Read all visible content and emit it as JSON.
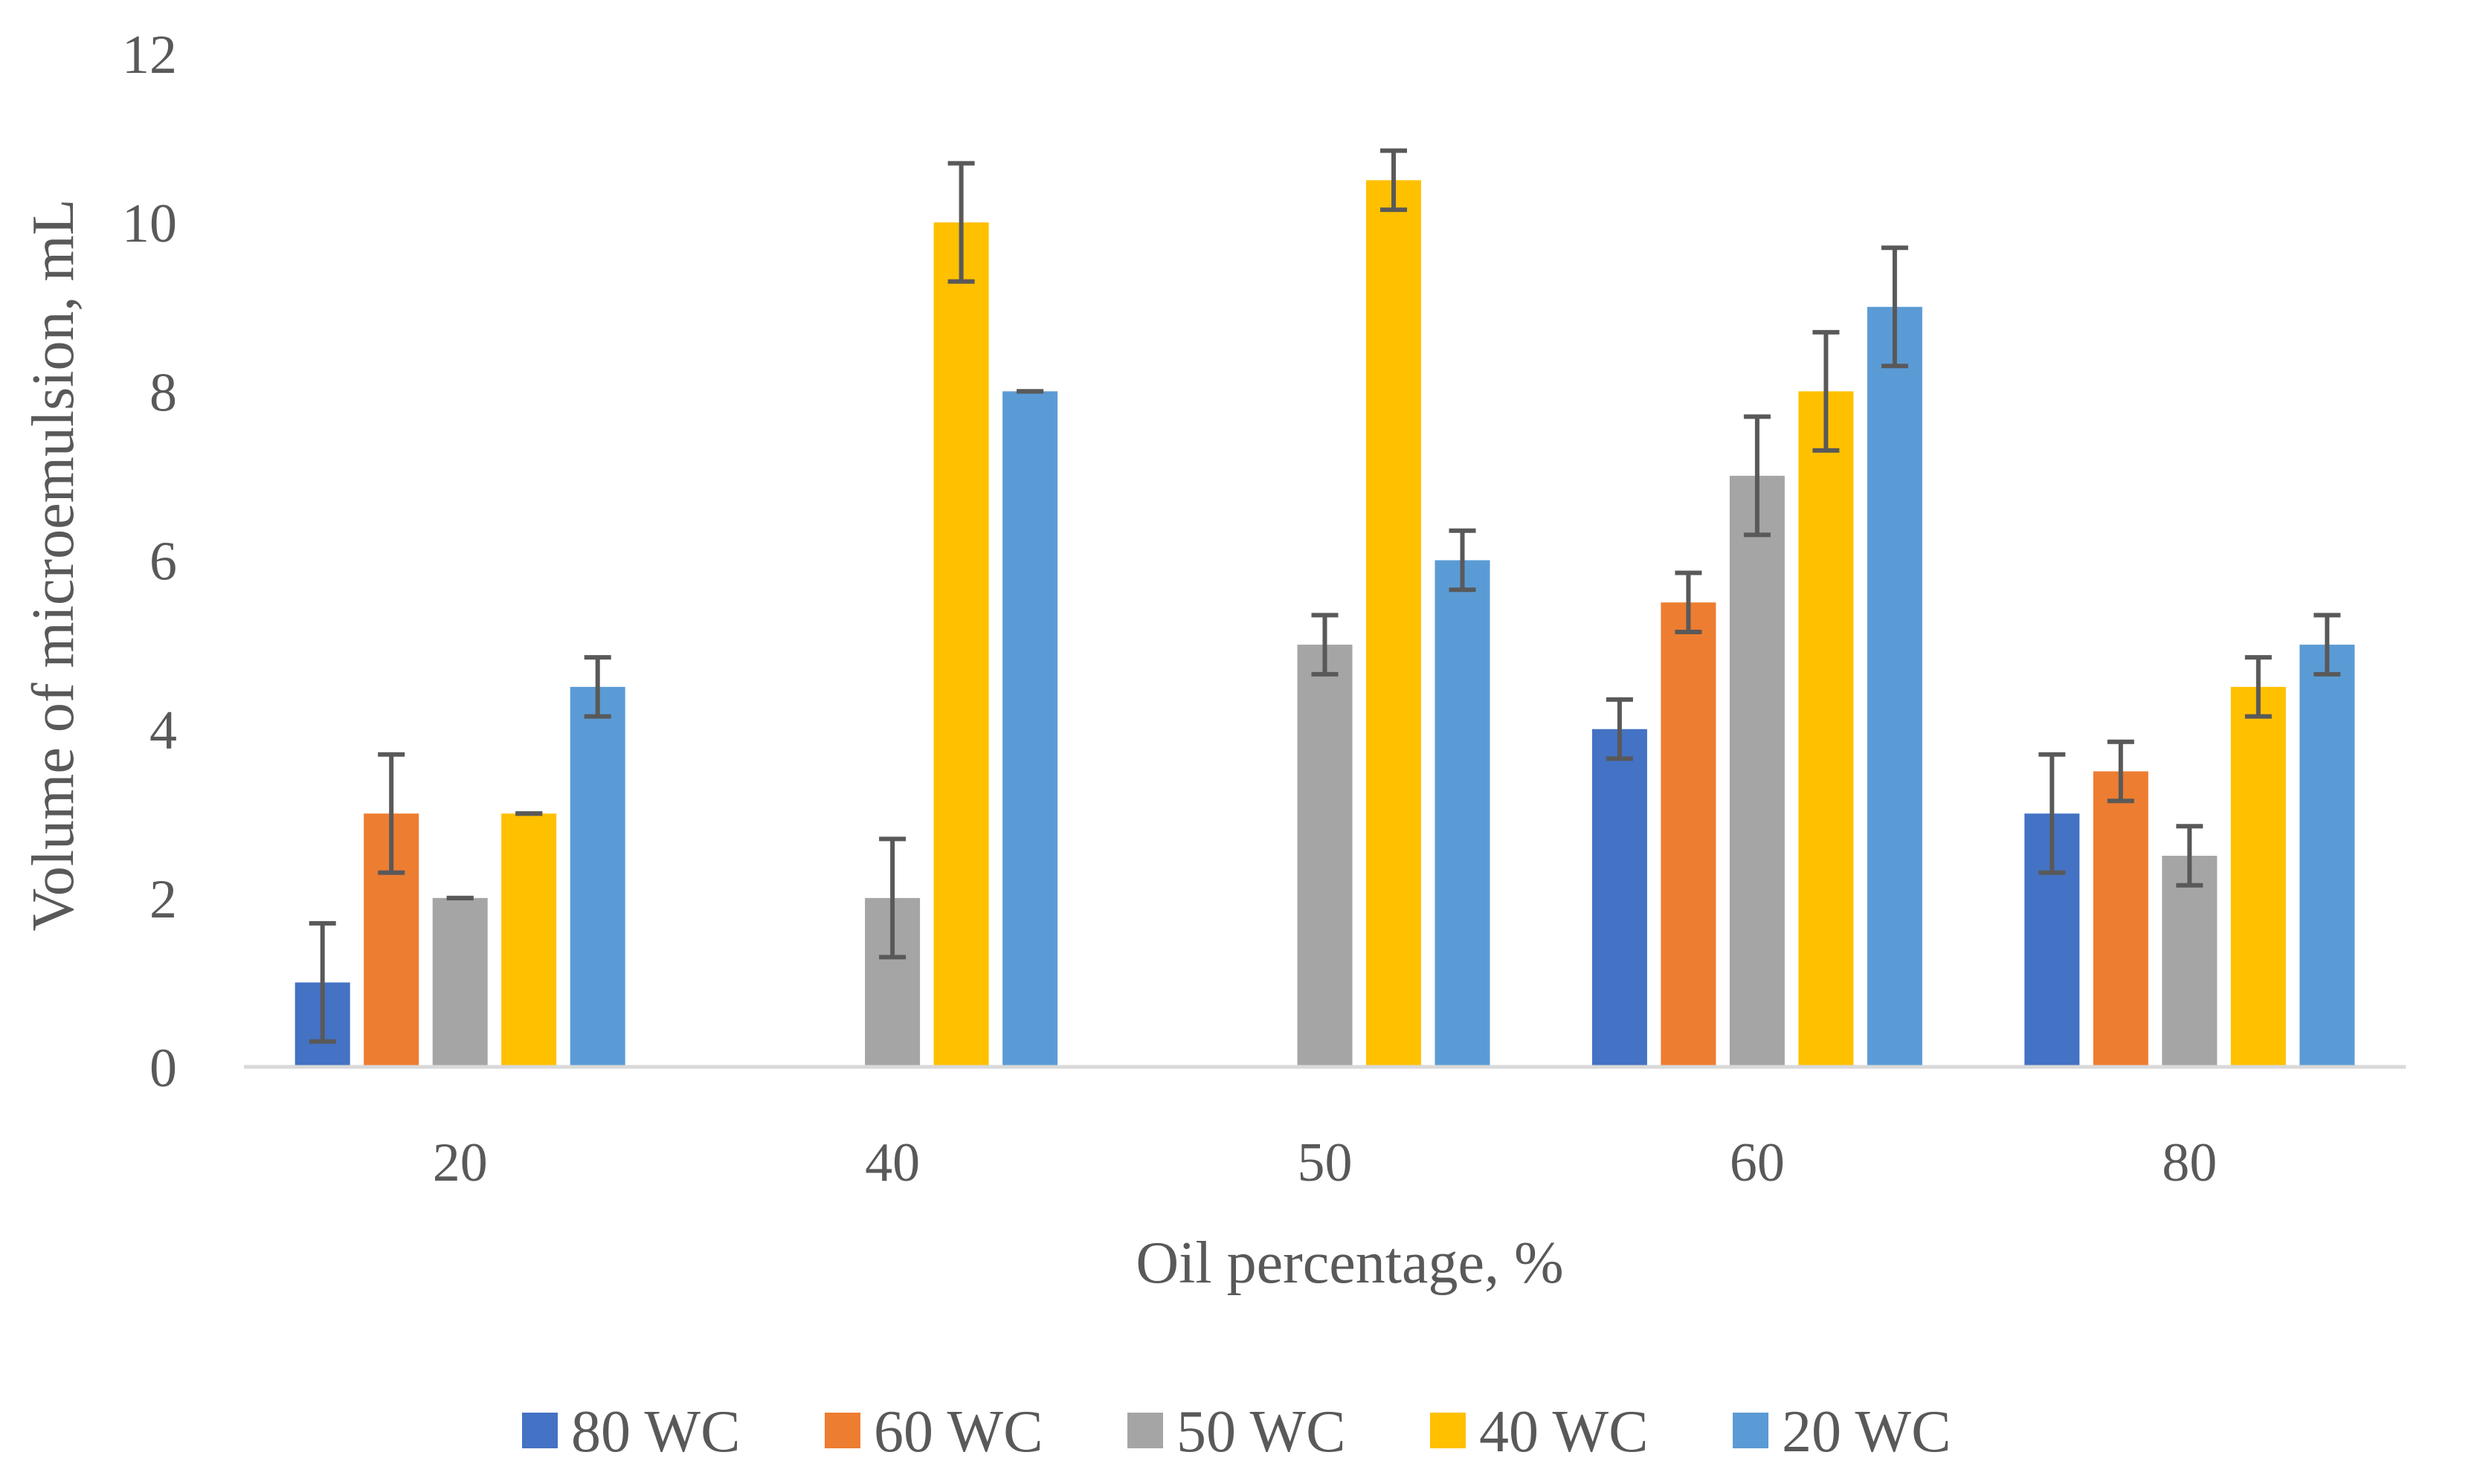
{
  "chart_data": {
    "type": "bar",
    "title": "",
    "xlabel": "Oil percentage, %",
    "ylabel": "Volume of microemulsion, mL",
    "categories": [
      "20",
      "40",
      "50",
      "60",
      "80"
    ],
    "ylim": [
      0,
      12
    ],
    "yticks": [
      0,
      2,
      4,
      6,
      8,
      10,
      12
    ],
    "grid": false,
    "legend_position": "bottom",
    "series": [
      {
        "name": "80 WC",
        "color": "#4472C4",
        "values": [
          1,
          0,
          0,
          4,
          3
        ],
        "errors": [
          0.7,
          0,
          0,
          0.35,
          0.7
        ]
      },
      {
        "name": "60 WC",
        "color": "#ED7D31",
        "values": [
          3,
          0,
          0,
          5.5,
          3.5
        ],
        "errors": [
          0.7,
          0,
          0,
          0.35,
          0.35
        ]
      },
      {
        "name": "50 WC",
        "color": "#A5A5A5",
        "values": [
          2,
          2,
          5,
          7,
          2.5
        ],
        "errors": [
          0,
          0.7,
          0.35,
          0.7,
          0.35
        ]
      },
      {
        "name": "40 WC",
        "color": "#FFC000",
        "values": [
          3,
          10,
          10.5,
          8,
          4.5
        ],
        "errors": [
          0,
          0.7,
          0.35,
          0.7,
          0.35
        ]
      },
      {
        "name": "20 WC",
        "color": "#5B9BD5",
        "values": [
          4.5,
          8,
          6,
          9,
          5
        ],
        "errors": [
          0.35,
          0,
          0.35,
          0.7,
          0.35
        ]
      }
    ]
  }
}
